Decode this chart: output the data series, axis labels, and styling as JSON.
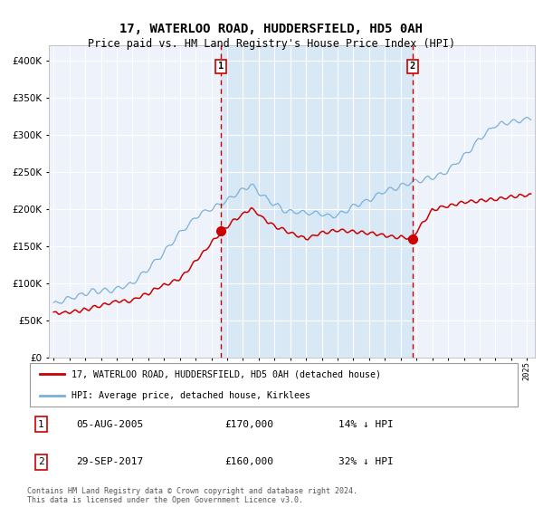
{
  "title": "17, WATERLOO ROAD, HUDDERSFIELD, HD5 0AH",
  "subtitle": "Price paid vs. HM Land Registry's House Price Index (HPI)",
  "legend_red": "17, WATERLOO ROAD, HUDDERSFIELD, HD5 0AH (detached house)",
  "legend_blue": "HPI: Average price, detached house, Kirklees",
  "annotation1_date": "05-AUG-2005",
  "annotation1_price": "£170,000",
  "annotation1_hpi": "14% ↓ HPI",
  "annotation1_year": 2005.6,
  "annotation1_value": 170000,
  "annotation2_date": "29-SEP-2017",
  "annotation2_price": "£160,000",
  "annotation2_hpi": "32% ↓ HPI",
  "annotation2_year": 2017.75,
  "annotation2_value": 160000,
  "footer": "Contains HM Land Registry data © Crown copyright and database right 2024.\nThis data is licensed under the Open Government Licence v3.0.",
  "ylim": [
    0,
    420000
  ],
  "yticks": [
    0,
    50000,
    100000,
    150000,
    200000,
    250000,
    300000,
    350000,
    400000
  ],
  "background_color": "#ffffff",
  "plot_bg_color": "#eef2fb",
  "shaded_region_color": "#d8e8f5",
  "red_color": "#cc0000",
  "blue_color": "#7ab0d8",
  "title_fontsize": 10,
  "subtitle_fontsize": 8.5
}
